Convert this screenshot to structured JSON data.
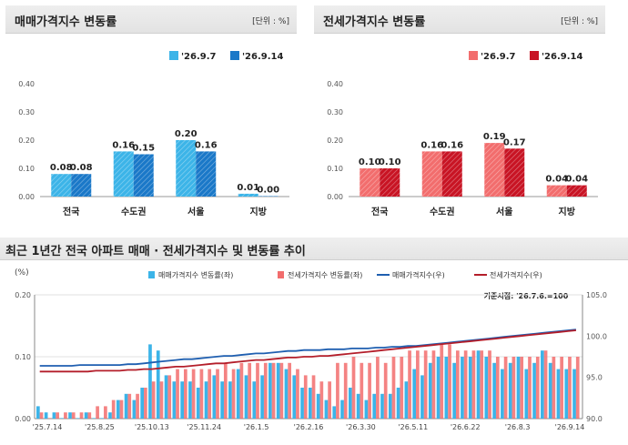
{
  "colors": {
    "sale_prev": "#3cb4e8",
    "sale_cur": "#1a78c8",
    "jeonse_prev": "#f26d6d",
    "jeonse_cur": "#c81424",
    "sale_index_line": "#1f5fb0",
    "jeonse_index_line": "#b41e2a"
  },
  "chart_data": [
    {
      "type": "bar",
      "title": "매매가격지수 변동률",
      "unit_note": "[단위 : %]",
      "categories": [
        "전국",
        "수도권",
        "서울",
        "지방"
      ],
      "series": [
        {
          "name": "'26.9.7",
          "values": [
            0.08,
            0.16,
            0.2,
            0.01
          ]
        },
        {
          "name": "'26.9.14",
          "values": [
            0.08,
            0.15,
            0.16,
            0.0
          ]
        }
      ],
      "data_labels": [
        [
          "0.08",
          "0.16",
          "0.20",
          "0.01"
        ],
        [
          "0.08",
          "0.15",
          "0.16",
          "0.00"
        ]
      ],
      "yticks": [
        "0.00",
        "0.10",
        "0.20",
        "0.30",
        "0.40"
      ],
      "ylim": [
        0,
        0.4
      ],
      "legend": "top"
    },
    {
      "type": "bar",
      "title": "전세가격지수 변동률",
      "unit_note": "[단위 : %]",
      "categories": [
        "전국",
        "수도권",
        "서울",
        "지방"
      ],
      "series": [
        {
          "name": "'26.9.7",
          "values": [
            0.1,
            0.16,
            0.19,
            0.04
          ]
        },
        {
          "name": "'26.9.14",
          "values": [
            0.1,
            0.16,
            0.17,
            0.04
          ]
        }
      ],
      "data_labels": [
        [
          "0.10",
          "0.16",
          "0.19",
          "0.04"
        ],
        [
          "0.10",
          "0.16",
          "0.17",
          "0.04"
        ]
      ],
      "yticks": [
        "0.00",
        "0.10",
        "0.20",
        "0.30",
        "0.40"
      ],
      "ylim": [
        0,
        0.4
      ],
      "legend": "top"
    },
    {
      "type": "bar",
      "title": "최근 1년간 전국 아파트 매매 · 전세가격지수 및 변동률 추이",
      "left_unit": "(%)",
      "base_note": "기준시점: '26.7.6.=100",
      "x_tick_labels": [
        "'25.7.14",
        "'25.8.25",
        "'25.10.13",
        "'25.11.24",
        "'26.1.5",
        "'26.2.16",
        "'26.3.30",
        "'26.5.11",
        "'26.6.22",
        "'26.8.3",
        "'26.9.14"
      ],
      "ylim_left": [
        0,
        0.2
      ],
      "yticks_left": [
        "0.00",
        "0.10",
        "0.20"
      ],
      "ylim_right": [
        90,
        105
      ],
      "yticks_right": [
        "90.0",
        "95.0",
        "100.0",
        "105.0"
      ],
      "series": [
        {
          "name": "매매가격지수 변동률(좌)",
          "type": "bar",
          "values": [
            0.02,
            0.01,
            0.01,
            0.0,
            0.01,
            0.0,
            0.01,
            0.0,
            0.0,
            0.01,
            0.03,
            0.04,
            0.03,
            0.05,
            0.12,
            0.11,
            0.07,
            0.06,
            0.06,
            0.06,
            0.05,
            0.06,
            0.07,
            0.06,
            0.06,
            0.08,
            0.07,
            0.06,
            0.07,
            0.09,
            0.09,
            0.08,
            0.07,
            0.05,
            0.05,
            0.04,
            0.03,
            0.02,
            0.03,
            0.05,
            0.04,
            0.03,
            0.04,
            0.04,
            0.04,
            0.05,
            0.06,
            0.08,
            0.07,
            0.09,
            0.1,
            0.1,
            0.09,
            0.1,
            0.1,
            0.11,
            0.1,
            0.09,
            0.08,
            0.09,
            0.1,
            0.08,
            0.09,
            0.11,
            0.09,
            0.08,
            0.08,
            0.08
          ]
        },
        {
          "name": "전세가격지수 변동률(좌)",
          "type": "bar",
          "values": [
            0.01,
            0.0,
            0.01,
            0.01,
            0.01,
            0.01,
            0.01,
            0.02,
            0.02,
            0.03,
            0.03,
            0.04,
            0.04,
            0.05,
            0.06,
            0.06,
            0.07,
            0.08,
            0.08,
            0.08,
            0.08,
            0.08,
            0.08,
            0.09,
            0.08,
            0.09,
            0.09,
            0.09,
            0.09,
            0.09,
            0.09,
            0.09,
            0.08,
            0.07,
            0.07,
            0.06,
            0.06,
            0.09,
            0.09,
            0.1,
            0.09,
            0.09,
            0.1,
            0.09,
            0.1,
            0.1,
            0.11,
            0.11,
            0.11,
            0.11,
            0.12,
            0.12,
            0.11,
            0.11,
            0.11,
            0.11,
            0.11,
            0.1,
            0.1,
            0.1,
            0.1,
            0.1,
            0.1,
            0.11,
            0.1,
            0.1,
            0.1,
            0.1
          ]
        },
        {
          "name": "매매가격지수(우)",
          "type": "line",
          "values": [
            96.4,
            96.4,
            96.4,
            96.4,
            96.4,
            96.5,
            96.5,
            96.5,
            96.5,
            96.5,
            96.5,
            96.6,
            96.6,
            96.7,
            96.8,
            96.9,
            97.0,
            97.1,
            97.2,
            97.2,
            97.3,
            97.4,
            97.5,
            97.6,
            97.6,
            97.7,
            97.8,
            97.9,
            97.9,
            98.0,
            98.1,
            98.2,
            98.2,
            98.3,
            98.3,
            98.3,
            98.4,
            98.4,
            98.4,
            98.5,
            98.5,
            98.5,
            98.6,
            98.6,
            98.7,
            98.7,
            98.8,
            98.8,
            98.9,
            99.0,
            99.1,
            99.2,
            99.3,
            99.4,
            99.5,
            99.6,
            99.7,
            99.8,
            99.9,
            100.0,
            100.1,
            100.2,
            100.3,
            100.4,
            100.5,
            100.6,
            100.7,
            100.8
          ]
        },
        {
          "name": "전세가격지수(우)",
          "type": "line",
          "values": [
            95.7,
            95.7,
            95.7,
            95.7,
            95.7,
            95.7,
            95.7,
            95.8,
            95.8,
            95.8,
            95.8,
            95.9,
            95.9,
            96.0,
            96.0,
            96.1,
            96.2,
            96.3,
            96.3,
            96.4,
            96.5,
            96.6,
            96.7,
            96.7,
            96.8,
            96.9,
            97.0,
            97.1,
            97.1,
            97.2,
            97.3,
            97.4,
            97.4,
            97.5,
            97.5,
            97.6,
            97.6,
            97.7,
            97.8,
            97.9,
            98.0,
            98.1,
            98.2,
            98.3,
            98.4,
            98.5,
            98.6,
            98.7,
            98.8,
            98.9,
            99.0,
            99.1,
            99.2,
            99.3,
            99.4,
            99.5,
            99.6,
            99.7,
            99.8,
            99.9,
            100.0,
            100.1,
            100.2,
            100.3,
            100.4,
            100.5,
            100.6,
            100.7
          ]
        }
      ],
      "legend": "top"
    }
  ]
}
